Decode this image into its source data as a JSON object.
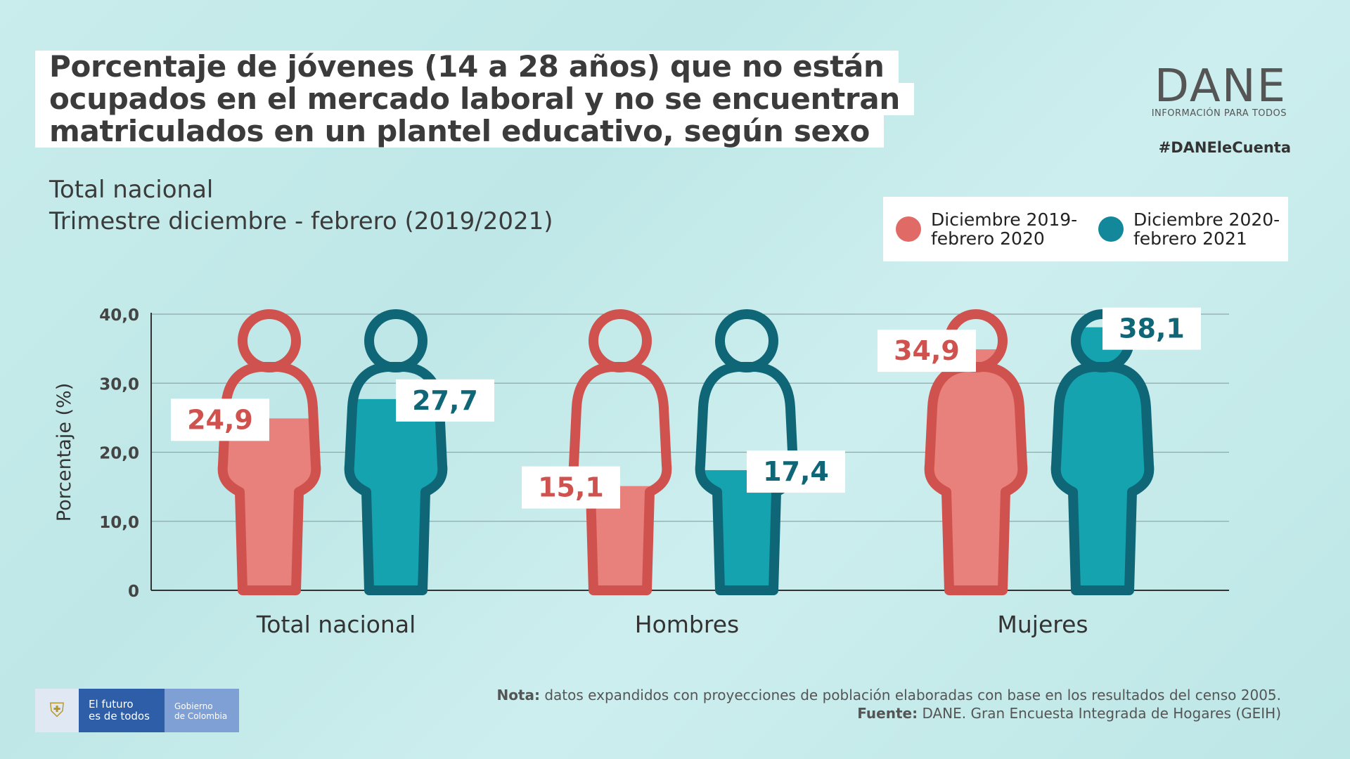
{
  "header": {
    "title_lines": [
      "Porcentaje de jóvenes (14 a 28 años) que no están",
      "ocupados en el mercado laboral y no se encuentran",
      "matriculados en un plantel educativo, según sexo"
    ],
    "subtitle_1": "Total nacional",
    "subtitle_2": "Trimestre diciembre - febrero (2019/2021)"
  },
  "logo": {
    "name": "DANE",
    "tagline": "INFORMACIÓN PARA TODOS",
    "hashtag": "#DANEleCuenta"
  },
  "footer": {
    "note_label": "Nota:",
    "note_text": " datos expandidos con proyecciones de población elaboradas con base en los resultados del censo 2005.",
    "source_label": "Fuente:",
    "source_text": " DANE. Gran Encuesta Integrada de Hogares (GEIH)",
    "gov_line1": "El futuro\nes de todos",
    "gov_line2": "Gobierno\nde Colombia"
  },
  "colors": {
    "series1": "#d0524e",
    "series1_fill": "#e8807b",
    "series2": "#0f6677",
    "series2_fill": "#15a3b0"
  },
  "chart_data": {
    "type": "bar",
    "categories": [
      "Total nacional",
      "Hombres",
      "Mujeres"
    ],
    "series": [
      {
        "name": "Diciembre 2019-\nfebrero 2020",
        "values": [
          24.9,
          15.1,
          34.9
        ],
        "labels": [
          "24,9",
          "15,1",
          "34,9"
        ]
      },
      {
        "name": "Diciembre 2020-\nfebrero 2021",
        "values": [
          27.7,
          17.4,
          38.1
        ],
        "labels": [
          "27,7",
          "17,4",
          "38,1"
        ]
      }
    ],
    "ylabel": "Porcentaje (%)",
    "ylim": [
      0,
      40
    ],
    "yticks": [
      0,
      10,
      20,
      30,
      40
    ],
    "ytick_labels": [
      "0",
      "10,0",
      "20,0",
      "30,0",
      "40,0"
    ],
    "grid": true,
    "legend_position": "top-right"
  }
}
